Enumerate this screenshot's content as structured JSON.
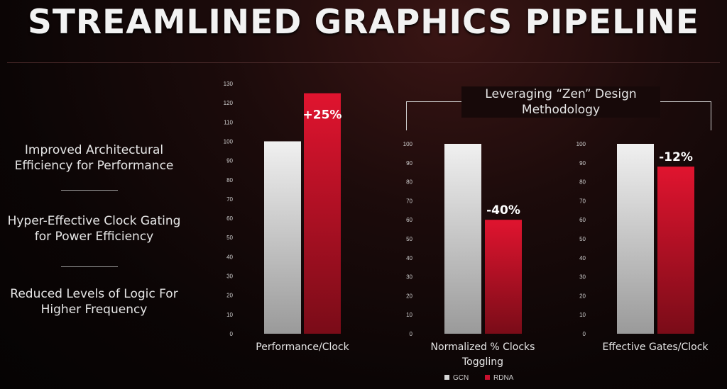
{
  "title": "STREAMLINED GRAPHICS PIPELINE",
  "features": [
    "Improved Architectural Efficiency for Performance",
    "Hyper-Effective Clock Gating for Power Efficiency",
    "Reduced Levels of Logic For Higher Frequency"
  ],
  "zen_label": "Leveraging “Zen” Design Methodology",
  "legend": {
    "gcn": "GCN",
    "rdna": "RDNA"
  },
  "colors": {
    "gcn": "#d7d7d7",
    "rdna": "#c8102e",
    "axis_text": "#cfcfcf"
  },
  "chart_data": [
    {
      "type": "bar",
      "categories": [
        "GCN",
        "RDNA"
      ],
      "values": [
        100,
        125
      ],
      "data_labels": [
        "",
        "+25%"
      ],
      "xlabel": "Performance/Clock",
      "ylim": [
        0,
        130
      ],
      "yticks": [
        0,
        10,
        20,
        30,
        40,
        50,
        60,
        70,
        80,
        90,
        100,
        110,
        120,
        130
      ]
    },
    {
      "type": "bar",
      "categories": [
        "GCN",
        "RDNA"
      ],
      "values": [
        100,
        60
      ],
      "data_labels": [
        "",
        "-40%"
      ],
      "xlabel": "Normalized % Clocks Toggling",
      "ylim": [
        0,
        100
      ],
      "yticks": [
        0,
        10,
        20,
        30,
        40,
        50,
        60,
        70,
        80,
        90,
        100
      ]
    },
    {
      "type": "bar",
      "categories": [
        "GCN",
        "RDNA"
      ],
      "values": [
        100,
        88
      ],
      "data_labels": [
        "",
        "-12%"
      ],
      "xlabel": "Effective Gates/Clock",
      "ylim": [
        0,
        100
      ],
      "yticks": [
        0,
        10,
        20,
        30,
        40,
        50,
        60,
        70,
        80,
        90,
        100
      ]
    }
  ]
}
